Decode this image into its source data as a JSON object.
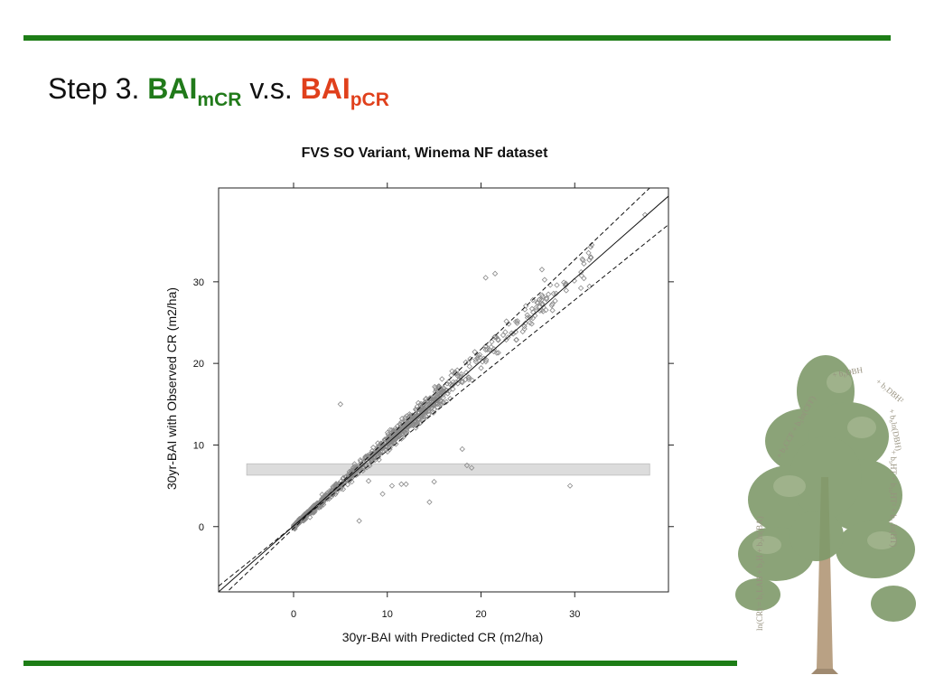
{
  "slide": {
    "title_prefix": "Step 3. ",
    "title_term1": "BAI",
    "title_term1_sub": "mCR",
    "title_mid": " v.s. ",
    "title_term2": "BAI",
    "title_term2_sub": "pCR"
  },
  "colors": {
    "rule": "#1d7d16",
    "term1": "#217a1a",
    "term2": "#e0401c",
    "points": "#8a8a8a",
    "band": "#dcdcdc"
  },
  "chart_data": {
    "type": "scatter",
    "title": "FVS SO Variant, Winema NF dataset",
    "xlabel": "30yr-BAI with Predicted CR (m2/ha)",
    "ylabel": "30yr-BAI with Observed CR (m2/ha)",
    "xlim": [
      -8,
      40
    ],
    "ylim": [
      -8,
      41.5
    ],
    "xticks": [
      0,
      10,
      20,
      30
    ],
    "yticks": [
      0,
      10,
      20,
      30
    ],
    "marker": "open-diamond",
    "grid": false,
    "reference_line": {
      "type": "solid",
      "points": [
        [
          -8,
          -8
        ],
        [
          40,
          40.5
        ]
      ]
    },
    "bounds": [
      {
        "type": "dashed",
        "points": [
          [
            -8,
            -7.3
          ],
          [
            40,
            37
          ]
        ]
      },
      {
        "type": "dashed",
        "points": [
          [
            -8,
            -9
          ],
          [
            38,
            41.5
          ]
        ]
      }
    ],
    "band": {
      "x": [
        -5,
        38
      ],
      "y": [
        6.3,
        7.7
      ]
    },
    "outliers": [
      [
        5,
        15
      ],
      [
        7,
        0.7
      ],
      [
        15,
        5.5
      ],
      [
        14.5,
        3
      ],
      [
        19,
        7.2
      ],
      [
        18.5,
        7.5
      ],
      [
        18,
        9.5
      ],
      [
        29.5,
        5
      ],
      [
        10.5,
        5
      ],
      [
        12,
        5.2
      ],
      [
        9.5,
        4
      ],
      [
        11.5,
        5.2
      ],
      [
        8,
        5.6
      ],
      [
        21.5,
        31
      ],
      [
        20.5,
        30.5
      ],
      [
        37.5,
        38.2
      ],
      [
        26.5,
        31.5
      ],
      [
        27,
        28
      ]
    ]
  }
}
